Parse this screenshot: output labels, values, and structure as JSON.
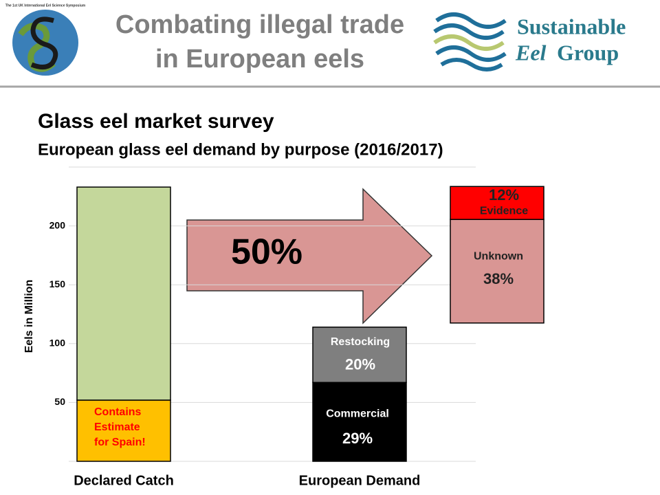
{
  "header": {
    "title_lines": [
      "Combating illegal trade",
      "in European eels"
    ],
    "badge": "The 1st UK International Eel Science Symposium",
    "logo_lines": [
      "Sustainable",
      "Eel",
      "Group"
    ]
  },
  "chart_data": {
    "type": "stacked_bar",
    "title": "Glass eel market survey",
    "subtitle": "European glass eel demand by purpose (2016/2017)",
    "y_label": "Eels in Million",
    "categories": [
      "Declared Catch",
      "European Demand"
    ],
    "ylim": [
      0,
      250
    ],
    "yticks": [
      50,
      100,
      150,
      200
    ],
    "grid": true,
    "bars": [
      {
        "segments": [
          {
            "color": "#ffc000",
            "value": 52,
            "label_lines": [
              "Contains",
              "Estimate",
              "for Spain!"
            ]
          },
          {
            "color": "#c4d79b",
            "value": 181,
            "label_lines": []
          }
        ]
      },
      {
        "segments": [
          {
            "color": "#000000",
            "value": 67,
            "label_lines": [
              "Commercial",
              "29%"
            ]
          },
          {
            "color": "#7f7f7f",
            "value": 47,
            "label_lines": [
              "Restocking",
              "20%"
            ]
          },
          {
            "color": "#d99694",
            "value": 88,
            "label_lines": [
              "Unknown",
              "38%"
            ]
          },
          {
            "color": "#ff0000",
            "value": 28,
            "label_lines": [
              "12%",
              "Evidence"
            ]
          }
        ]
      }
    ],
    "annotation": "50%"
  }
}
